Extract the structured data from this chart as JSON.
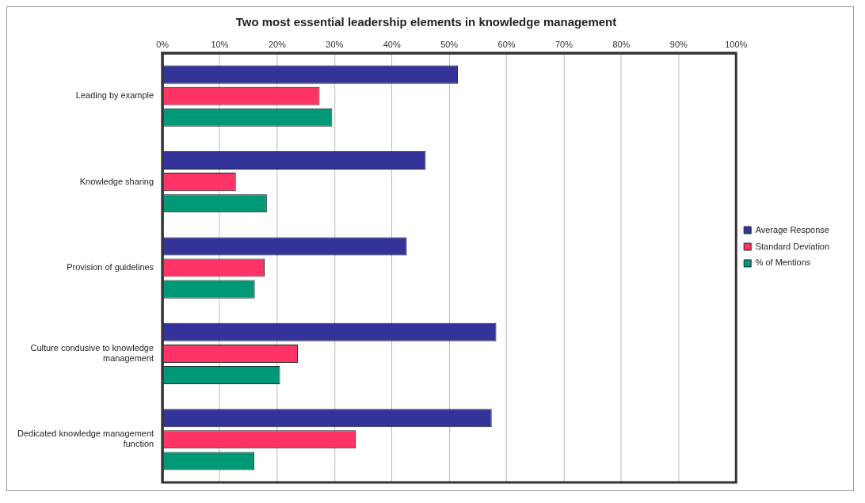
{
  "chart_data": {
    "type": "bar",
    "orientation": "horizontal",
    "title": "Two most essential leadership elements in knowledge management",
    "categories": [
      "Leading by example",
      "Knowledge sharing",
      "Provision of guidelines",
      "Culture condusive to knowledge management",
      "Dedicated knowledge management function"
    ],
    "series": [
      {
        "name": "Average Response",
        "color": "#333399",
        "values": [
          51.5,
          45.9,
          42.6,
          58.2,
          57.4
        ]
      },
      {
        "name": "Standard Deviation",
        "color": "#ff3366",
        "values": [
          27.4,
          12.8,
          17.8,
          23.6,
          33.7
        ]
      },
      {
        "name": "% of Mentions",
        "color": "#009977",
        "values": [
          29.6,
          18.2,
          16.1,
          20.5,
          16.0
        ]
      }
    ],
    "xlim": [
      0,
      100
    ],
    "xticks": [
      {
        "value": 0,
        "label": "0%"
      },
      {
        "value": 10,
        "label": "10%"
      },
      {
        "value": 20,
        "label": "20%"
      },
      {
        "value": 30,
        "label": "30%"
      },
      {
        "value": 40,
        "label": "40%"
      },
      {
        "value": 50,
        "label": "50%"
      },
      {
        "value": 60,
        "label": "60%"
      },
      {
        "value": 70,
        "label": "70%"
      },
      {
        "value": 80,
        "label": "80%"
      },
      {
        "value": 90,
        "label": "90%"
      },
      {
        "value": 100,
        "label": "100%"
      }
    ],
    "grid": "x",
    "legend": "right"
  }
}
